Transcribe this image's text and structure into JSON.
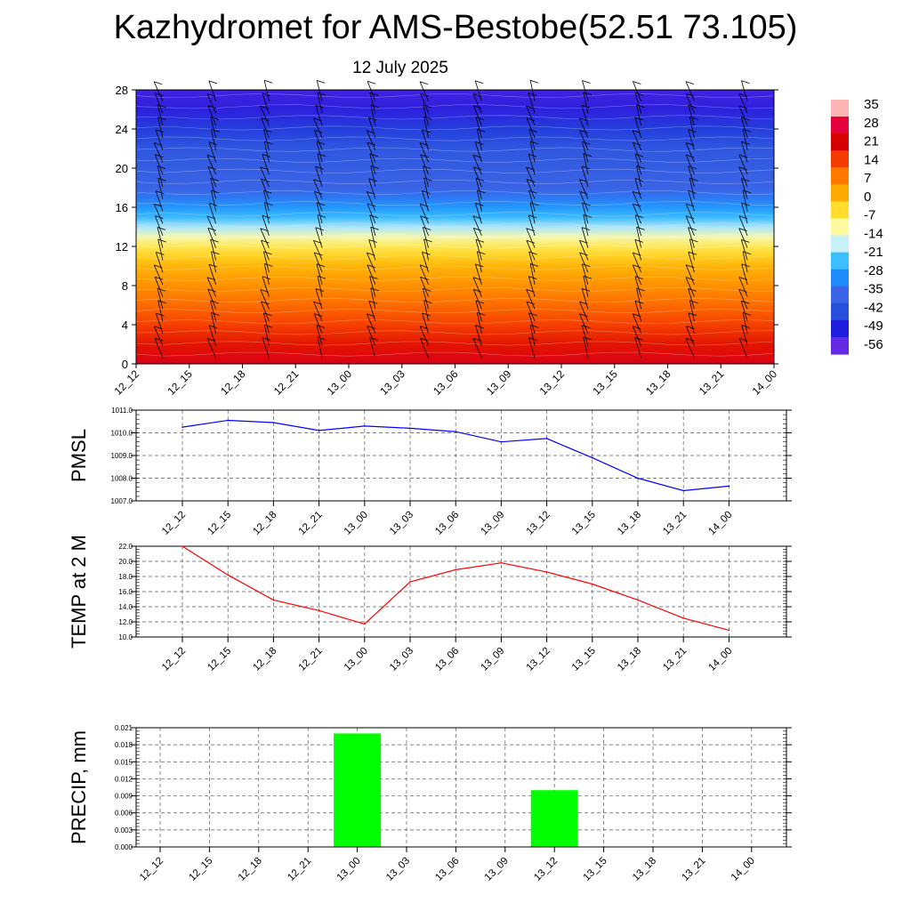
{
  "page": {
    "title": "Kazhydromet for AMS-Bestobe(52.51 73.105)",
    "subtitle": "12 July 2025"
  },
  "colors": {
    "pmsl_line": "#0000ff",
    "temp_line": "#ff0000",
    "precip_bar": "#00ff00",
    "grid": "#808080",
    "barb": "#000000"
  },
  "chart_data": [
    {
      "type": "heatmap",
      "title": "",
      "xlabel": "",
      "ylabel": "",
      "x": [
        "12_12",
        "12_15",
        "12_18",
        "12_21",
        "13_00",
        "13_03",
        "13_06",
        "13_09",
        "13_12",
        "13_15",
        "13_18",
        "13_21",
        "14_00"
      ],
      "ylim": [
        0,
        28
      ],
      "yticks": [
        0,
        4,
        8,
        12,
        16,
        20,
        24,
        28
      ],
      "colorbar": {
        "labels": [
          "35",
          "28",
          "21",
          "14",
          "7",
          "0",
          "-7",
          "-14",
          "-21",
          "-28",
          "-35",
          "-42",
          "-49",
          "-56"
        ],
        "colors": [
          "#ffb4b4",
          "#e6003c",
          "#d70000",
          "#f53c00",
          "#ff7800",
          "#ffaa00",
          "#ffdc2e",
          "#fffaa0",
          "#c8f0fa",
          "#3cbeff",
          "#1e8cff",
          "#3c64e6",
          "#2850dc",
          "#1e1edc",
          "#6428e6"
        ]
      },
      "temperature_profile": {
        "levels": [
          0,
          2,
          4,
          6,
          8,
          10,
          11,
          12,
          13,
          14,
          15,
          16,
          17,
          18,
          20,
          22,
          24,
          26,
          28
        ],
        "values": [
          27,
          22,
          17,
          12,
          7,
          2,
          -2,
          -6,
          -12,
          -19,
          -25,
          -30,
          -35,
          -39,
          -41,
          -43,
          -48,
          -54,
          -56
        ]
      },
      "wind_barbs": "present at every time step and level"
    },
    {
      "type": "line",
      "ylabel": "PMSL",
      "x": [
        "12_12",
        "12_15",
        "12_18",
        "12_21",
        "13_00",
        "13_03",
        "13_06",
        "13_09",
        "13_12",
        "13_15",
        "13_18",
        "13_21",
        "14_00"
      ],
      "yticks": [
        "1007.0",
        "1008.0",
        "1009.0",
        "1010.0",
        "1011.0"
      ],
      "ylim": [
        1007.0,
        1011.0
      ],
      "grid": true,
      "series": [
        {
          "values": [
            1010.25,
            1010.55,
            1010.45,
            1010.1,
            1010.3,
            1010.2,
            1010.05,
            1009.6,
            1009.75,
            1008.9,
            1008.0,
            1007.45,
            1007.65
          ]
        }
      ]
    },
    {
      "type": "line",
      "ylabel": "TEMP at 2 M",
      "x": [
        "12_12",
        "12_15",
        "12_18",
        "12_21",
        "13_00",
        "13_03",
        "13_06",
        "13_09",
        "13_12",
        "13_15",
        "13_18",
        "13_21",
        "14_00"
      ],
      "yticks": [
        "10.0",
        "12.0",
        "14.0",
        "16.0",
        "18.0",
        "20.0",
        "22.0"
      ],
      "ylim": [
        10.0,
        22.0
      ],
      "grid": true,
      "series": [
        {
          "values": [
            22.0,
            18.2,
            14.9,
            13.5,
            11.7,
            17.3,
            18.9,
            19.8,
            18.6,
            17.0,
            14.9,
            12.5,
            10.9
          ]
        }
      ]
    },
    {
      "type": "bar",
      "ylabel": "PRECIP, mm",
      "categories": [
        "12_12",
        "12_15",
        "12_18",
        "12_21",
        "13_00",
        "13_03",
        "13_06",
        "13_09",
        "13_12",
        "13_15",
        "13_18",
        "13_21",
        "14_00"
      ],
      "yticks": [
        "0.000",
        "0.003",
        "0.006",
        "0.009",
        "0.012",
        "0.015",
        "0.018",
        "0.021"
      ],
      "ylim": [
        0,
        0.021
      ],
      "grid": true,
      "values": [
        0,
        0,
        0,
        0,
        0.02,
        0,
        0,
        0,
        0.01,
        0,
        0,
        0,
        0
      ]
    }
  ]
}
